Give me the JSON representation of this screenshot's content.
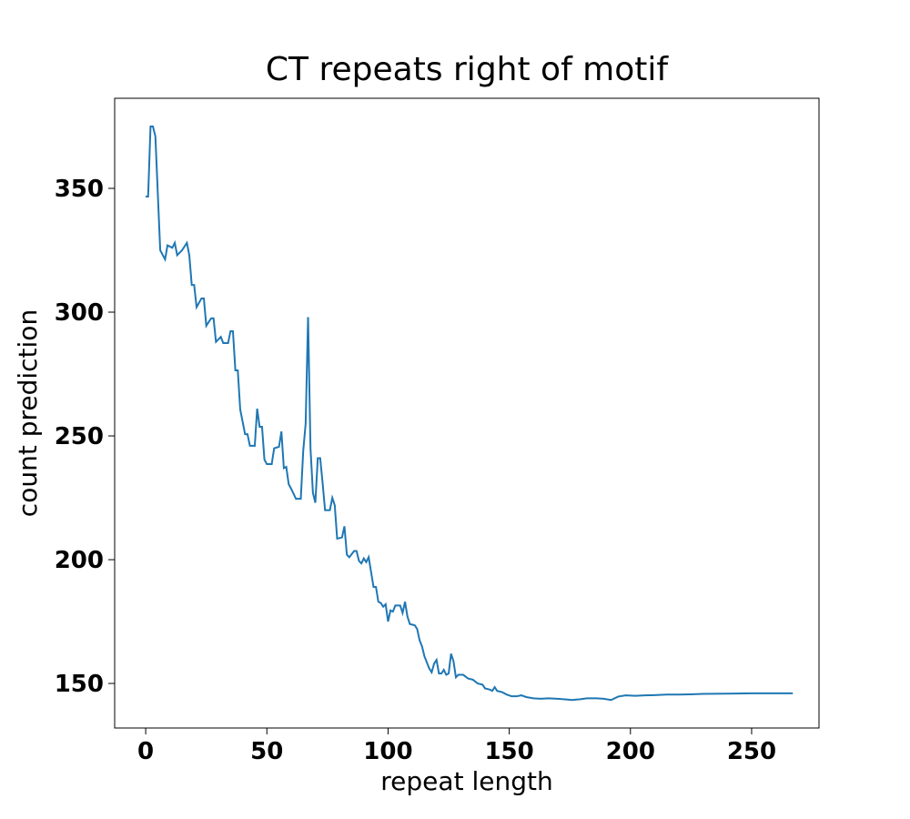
{
  "chart_data": {
    "type": "line",
    "title": "CT repeats right of motif",
    "x_label": "repeat length",
    "y_label": "count prediction",
    "x": [
      0,
      1,
      2,
      3,
      4,
      6,
      8,
      9,
      11,
      12,
      13,
      15,
      17,
      18,
      19,
      20,
      21,
      23,
      24,
      25,
      27,
      28,
      29,
      31,
      32,
      34,
      35,
      36,
      37,
      38,
      39,
      41,
      42,
      43,
      45,
      46,
      47,
      48,
      49,
      50,
      52,
      53,
      55,
      56,
      57,
      58,
      59,
      60,
      62,
      64,
      65,
      66,
      67,
      68,
      69,
      70,
      71,
      72,
      73,
      74,
      76,
      77,
      78,
      79,
      81,
      82,
      83,
      84,
      86,
      87,
      88,
      89,
      90,
      91,
      92,
      93,
      94,
      95,
      96,
      97,
      98,
      99,
      100,
      101,
      102,
      103,
      105,
      106,
      107,
      108,
      109,
      111,
      112,
      113,
      114,
      115,
      117,
      118,
      119,
      120,
      121,
      122,
      123,
      124,
      125,
      126,
      127,
      128,
      129,
      131,
      133,
      135,
      137,
      139,
      140,
      142,
      143,
      144,
      145,
      147,
      149,
      151,
      153,
      155,
      157,
      160,
      163,
      166,
      170,
      173,
      176,
      179,
      182,
      186,
      189,
      192,
      195,
      198,
      202,
      206,
      210,
      215,
      220,
      225,
      230,
      240,
      250,
      260,
      267
    ],
    "series": [
      {
        "name": "count prediction",
        "color": "#1f77b4",
        "values": [
          346.7,
          346.7,
          375,
          375,
          371,
          325,
          321.3,
          327,
          326,
          328,
          323,
          325,
          328,
          323,
          311,
          311,
          302,
          305.5,
          305.5,
          294.5,
          297.5,
          297.5,
          288,
          290,
          287.5,
          287.5,
          292.3,
          292.3,
          276.5,
          276.5,
          260.7,
          250.7,
          250.7,
          246,
          246,
          261,
          253.7,
          253.7,
          240.4,
          238.6,
          238.6,
          245,
          245.6,
          251.8,
          237,
          237.5,
          230.5,
          228.7,
          224.6,
          224.6,
          244,
          255,
          298,
          245,
          227,
          223,
          241,
          241,
          231,
          220,
          220,
          225,
          222,
          208.5,
          209,
          213.5,
          202,
          201,
          203.5,
          203.5,
          199.5,
          198.5,
          200.5,
          199,
          201,
          195,
          189,
          189,
          183,
          182.5,
          181,
          182,
          175,
          179.5,
          179,
          181.5,
          181.5,
          178.5,
          183,
          177,
          174,
          173.5,
          172,
          167.5,
          165,
          161,
          156,
          154.5,
          158,
          159.5,
          154,
          154,
          155.5,
          153.5,
          154,
          162,
          159,
          152.5,
          153.5,
          153.5,
          152,
          151.5,
          150,
          149.5,
          148,
          147.5,
          147,
          148.5,
          147,
          146.5,
          145.5,
          144.8,
          144.8,
          145.2,
          144.5,
          144,
          143.8,
          144,
          143.8,
          143.6,
          143.3,
          143.6,
          144,
          144,
          143.8,
          143.3,
          144.7,
          145.2,
          145,
          145.2,
          145.3,
          145.5,
          145.5,
          145.6,
          145.8,
          145.9,
          146,
          146,
          146
        ]
      }
    ],
    "xlim": [
      -12.8,
      277.8
    ],
    "ylim": [
      132,
      386.4
    ],
    "xticks": [
      0,
      50,
      100,
      150,
      200,
      250
    ],
    "yticks": [
      150,
      200,
      250,
      300,
      350
    ]
  }
}
